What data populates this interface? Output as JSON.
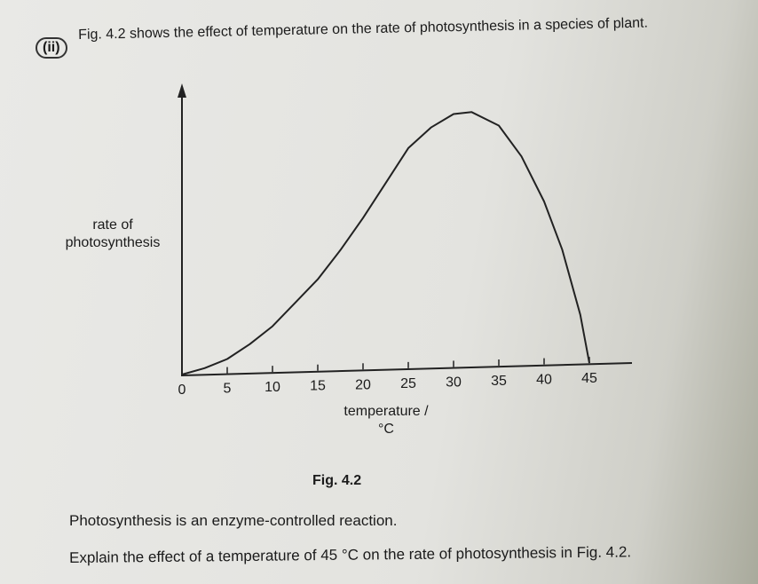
{
  "question": {
    "label": "(ii)",
    "text": "Fig. 4.2 shows the effect of temperature on the rate of photosynthesis in a species of plant."
  },
  "chart_data": {
    "type": "line",
    "y_label": "rate of photosynthesis",
    "x_label": "temperature /°C",
    "x": [
      0,
      2.5,
      5,
      7.5,
      10,
      12.5,
      15,
      17.5,
      20,
      22.5,
      25,
      27.5,
      30,
      32,
      35,
      37.5,
      40,
      42,
      44,
      45
    ],
    "series": [
      {
        "color": "#222222",
        "values": [
          0,
          2,
          5,
          10,
          16,
          24,
          32,
          42,
          53,
          65,
          77,
          84,
          88.5,
          89,
          84,
          73,
          57,
          40,
          17,
          0
        ]
      }
    ],
    "xlim": [
      0,
      50
    ],
    "ylim": [
      0,
      100
    ],
    "xticks": [
      0,
      5,
      10,
      15,
      20,
      25,
      30,
      35,
      40,
      45
    ]
  },
  "caption": "Fig. 4.2",
  "paragraphs": [
    "Photosynthesis is an enzyme-controlled reaction.",
    "Explain the effect of a temperature of 45 °C on the rate of photosynthesis in Fig. 4.2."
  ]
}
